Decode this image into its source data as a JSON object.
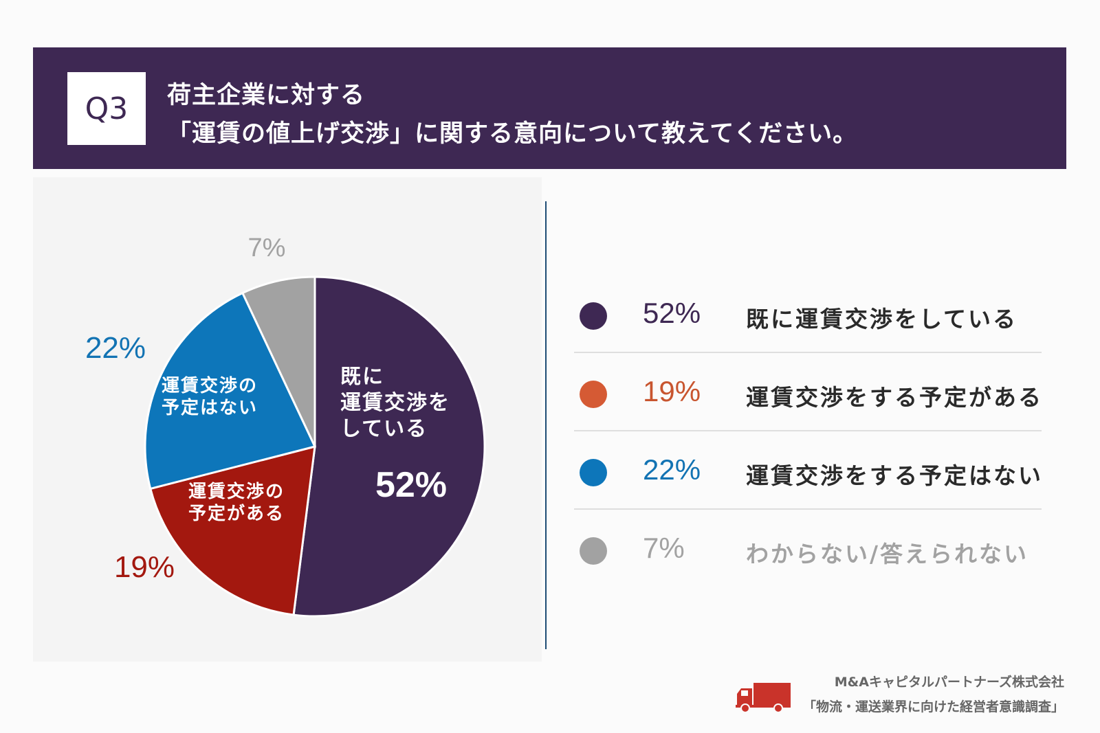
{
  "header": {
    "question_no": "Q3",
    "title_line1": "荷主企業に対する",
    "title_line2": "「運賃の値上げ交渉」に関する意向について教えてください。"
  },
  "chart_data": {
    "type": "pie",
    "title": "荷主企業に対する「運賃の値上げ交渉」に関する意向について教えてください。",
    "slices": [
      {
        "label": "既に運賃交渉をしている",
        "inner_label": [
          "既に",
          "運賃交渉を",
          "している"
        ],
        "value": 52,
        "display": "52%",
        "color": "#3e2853",
        "outer_color": "#ffffff"
      },
      {
        "label": "運賃交渉をする予定がある",
        "inner_label": [
          "運賃交渉の",
          "予定がある"
        ],
        "value": 19,
        "display": "19%",
        "color": "#a3180f",
        "outer_color": "#a3180f"
      },
      {
        "label": "運賃交渉をする予定はない",
        "inner_label": [
          "運賃交渉の",
          "予定はない"
        ],
        "value": 22,
        "display": "22%",
        "color": "#0d76ba",
        "outer_color": "#1273b3"
      },
      {
        "label": "わからない/答えられない",
        "inner_label": [],
        "value": 7,
        "display": "7%",
        "color": "#a2a2a2",
        "outer_color": "#a2a2a2"
      }
    ]
  },
  "legend": [
    {
      "pct": "52%",
      "label": "既に運賃交渉をしている",
      "dot_color": "#3e2853",
      "pct_color": "#3e2853",
      "label_color": "#2a2a2a"
    },
    {
      "pct": "19%",
      "label": "運賃交渉をする予定がある",
      "dot_color": "#d55a34",
      "pct_color": "#c8552f",
      "label_color": "#2a2a2a"
    },
    {
      "pct": "22%",
      "label": "運賃交渉をする予定はない",
      "dot_color": "#0d76ba",
      "pct_color": "#1273b3",
      "label_color": "#2a2a2a"
    },
    {
      "pct": "7%",
      "label": "わからない/答えられない",
      "dot_color": "#a2a2a2",
      "pct_color": "#a2a2a2",
      "label_color": "#a2a2a2"
    }
  ],
  "source": {
    "company": "M&Aキャピタルパートナーズ株式会社",
    "survey": "「物流・運送業界に向けた経営者意識調査」",
    "icon": "truck-icon"
  }
}
